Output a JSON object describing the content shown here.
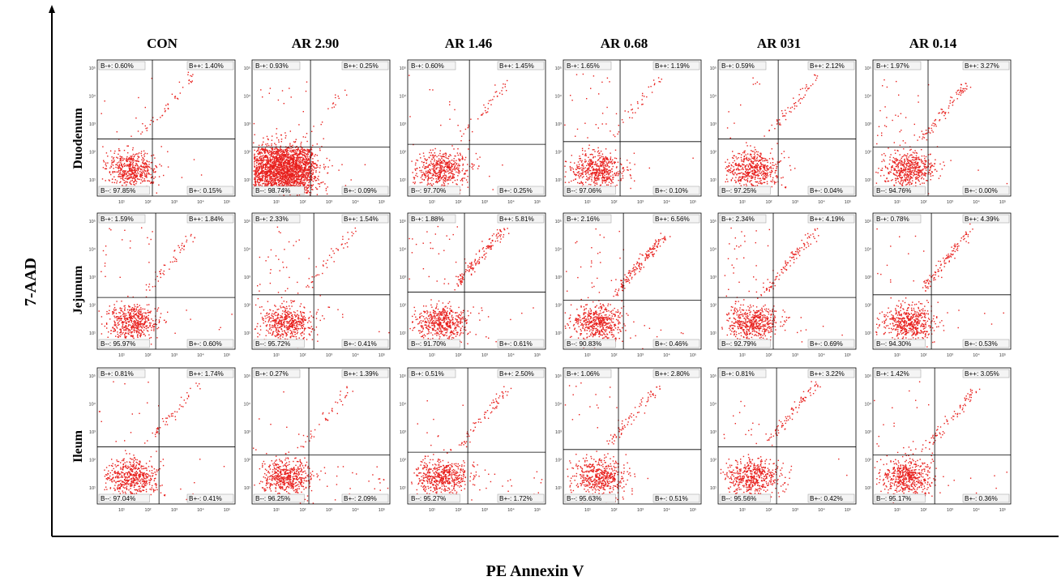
{
  "figure": {
    "x_axis_title": "PE Annexin V",
    "y_axis_title": "7-AAD",
    "columns": [
      "CON",
      "AR 2.90",
      "AR 1.46",
      "AR 0.68",
      "AR 031",
      "AR 0.14"
    ],
    "rows": [
      "Duodenum",
      "Jejunum",
      "Ileum"
    ],
    "colors": {
      "dots": "#e8201d",
      "frame": "#000000",
      "label_bg": "#f4f4f4"
    },
    "tick_labels": [
      "10¹",
      "10²",
      "10³",
      "10⁴",
      "10⁵"
    ]
  },
  "chart_data": {
    "type": "scatter",
    "x_axis": {
      "label": "PE Annexin V",
      "scale": "log"
    },
    "y_axis": {
      "label": "7-AAD",
      "scale": "log"
    },
    "quadrant_labels": {
      "top_left": "B-+",
      "top_right": "B++",
      "bottom_left": "B--",
      "bottom_right": "B+-"
    },
    "panels": [
      {
        "row": "Duodenum",
        "column": "CON",
        "B-+": "0.60%",
        "B++": "1.40%",
        "B--": "97.85%",
        "B+-": "0.15%"
      },
      {
        "row": "Duodenum",
        "column": "AR 2.90",
        "B-+": "0.93%",
        "B++": "0.25%",
        "B--": "98.74%",
        "B+-": "0.09%"
      },
      {
        "row": "Duodenum",
        "column": "AR 1.46",
        "B-+": "0.60%",
        "B++": "1.45%",
        "B--": "97.70%",
        "B+-": "0.25%"
      },
      {
        "row": "Duodenum",
        "column": "AR 0.68",
        "B-+": "1.65%",
        "B++": "1.19%",
        "B--": "97.06%",
        "B+-": "0.10%"
      },
      {
        "row": "Duodenum",
        "column": "AR 031",
        "B-+": "0.59%",
        "B++": "2.12%",
        "B--": "97.25%",
        "B+-": "0.04%"
      },
      {
        "row": "Duodenum",
        "column": "AR 0.14",
        "B-+": "1.97%",
        "B++": "3.27%",
        "B--": "94.76%",
        "B+-": "0.00%"
      },
      {
        "row": "Jejunum",
        "column": "CON",
        "B-+": "1.59%",
        "B++": "1.84%",
        "B--": "95.97%",
        "B+-": "0.60%"
      },
      {
        "row": "Jejunum",
        "column": "AR 2.90",
        "B-+": "2.33%",
        "B++": "1.54%",
        "B--": "95.72%",
        "B+-": "0.41%"
      },
      {
        "row": "Jejunum",
        "column": "AR 1.46",
        "B-+": "1.88%",
        "B++": "5.81%",
        "B--": "91.70%",
        "B+-": "0.61%"
      },
      {
        "row": "Jejunum",
        "column": "AR 0.68",
        "B-+": "2.16%",
        "B++": "6.56%",
        "B--": "90.83%",
        "B+-": "0.46%"
      },
      {
        "row": "Jejunum",
        "column": "AR 031",
        "B-+": "2.34%",
        "B++": "4.19%",
        "B--": "92.79%",
        "B+-": "0.69%"
      },
      {
        "row": "Jejunum",
        "column": "AR 0.14",
        "B-+": "0.78%",
        "B++": "4.39%",
        "B--": "94.30%",
        "B+-": "0.53%"
      },
      {
        "row": "Ileum",
        "column": "CON",
        "B-+": "0.81%",
        "B++": "1.74%",
        "B--": "97.04%",
        "B+-": "0.41%"
      },
      {
        "row": "Ileum",
        "column": "AR 2.90",
        "B-+": "0.27%",
        "B++": "1.39%",
        "B--": "96.25%",
        "B+-": "2.09%"
      },
      {
        "row": "Ileum",
        "column": "AR 1.46",
        "B-+": "0.51%",
        "B++": "2.50%",
        "B--": "95.27%",
        "B+-": "1.72%"
      },
      {
        "row": "Ileum",
        "column": "AR 0.68",
        "B-+": "1.06%",
        "B++": "2.80%",
        "B--": "95.63%",
        "B+-": "0.51%"
      },
      {
        "row": "Ileum",
        "column": "AR 031",
        "B-+": "0.81%",
        "B++": "3.22%",
        "B--": "95.56%",
        "B+-": "0.42%"
      },
      {
        "row": "Ileum",
        "column": "AR 0.14",
        "B-+": "1.42%",
        "B++": "3.05%",
        "B--": "95.17%",
        "B+-": "0.36%"
      }
    ]
  }
}
